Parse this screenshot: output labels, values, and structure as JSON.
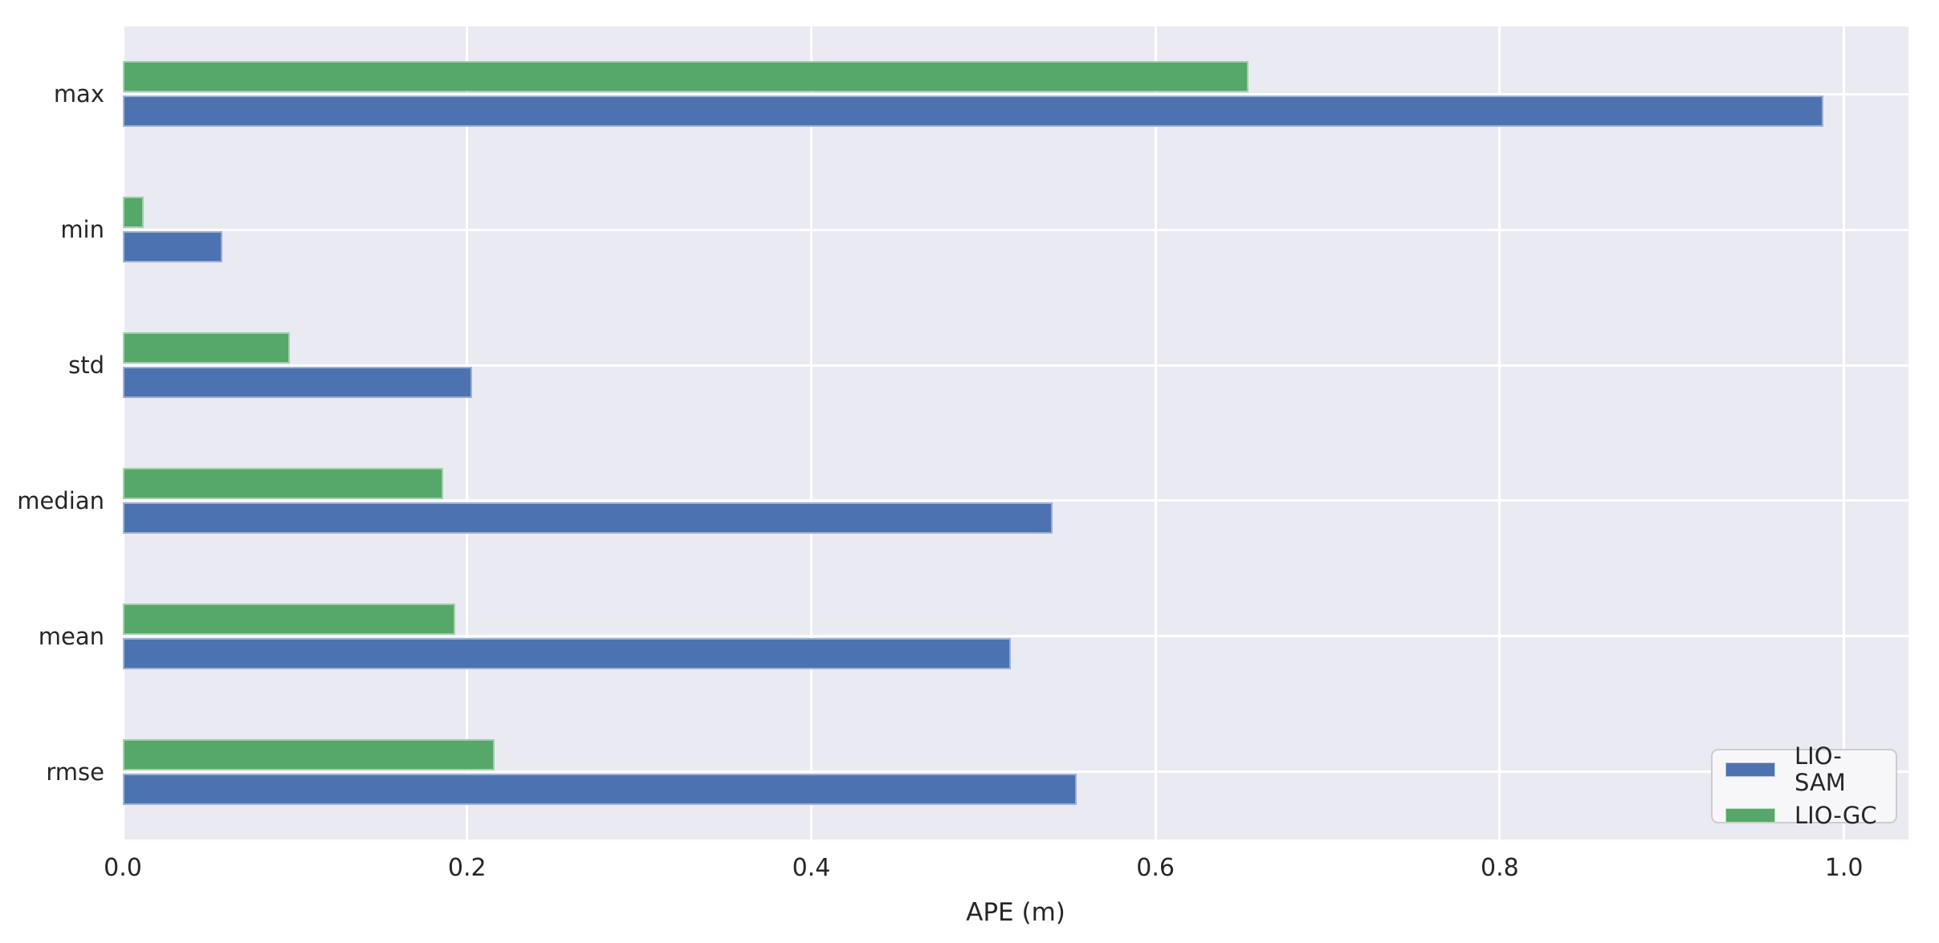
{
  "chart_data": {
    "type": "bar",
    "orientation": "horizontal",
    "title": "",
    "xlabel": "APE (m)",
    "ylabel": "",
    "categories": [
      "max",
      "min",
      "std",
      "median",
      "mean",
      "rmse"
    ],
    "series": [
      {
        "name": "LIO-SAM",
        "color": "#4C72B0",
        "values": [
          0.988,
          0.058,
          0.203,
          0.54,
          0.516,
          0.554
        ]
      },
      {
        "name": "LIO-GC",
        "color": "#55A868",
        "values": [
          0.654,
          0.012,
          0.097,
          0.186,
          0.193,
          0.216
        ]
      }
    ],
    "xticks": [
      0.0,
      0.2,
      0.4,
      0.6,
      0.8,
      1.0
    ],
    "xtick_labels": [
      "0.0",
      "0.2",
      "0.4",
      "0.6",
      "0.8",
      "1.0"
    ],
    "xlim": [
      0,
      1.0375
    ],
    "grid": true,
    "legend_position": "lower right",
    "colors": {
      "plot_background": "#EAEAF2",
      "grid": "#FFFFFF",
      "text": "#262626",
      "legend_background": "#F7F7FA",
      "legend_border": "#CCCCCC"
    }
  }
}
